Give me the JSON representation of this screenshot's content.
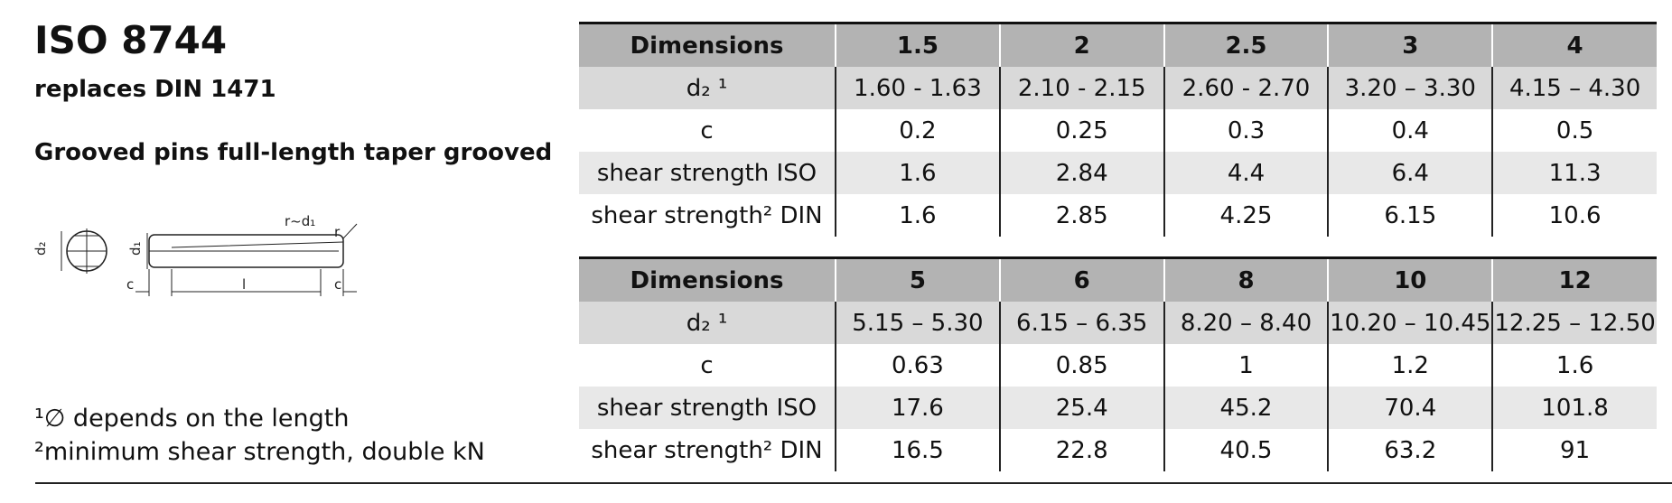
{
  "header": {
    "title": "ISO 8744",
    "subtitle": "replaces DIN 1471",
    "description": "Grooved pins full-length taper grooved"
  },
  "diagram": {
    "labels": [
      "r~d₁",
      "r",
      "d₂",
      "d₁",
      "c",
      "l",
      "c"
    ]
  },
  "footnotes": [
    "¹∅ depends on the length",
    "²minimum shear strength, double kN"
  ],
  "tables": [
    {
      "header": [
        "Dimensions",
        "1.5",
        "2",
        "2.5",
        "3",
        "4"
      ],
      "rows": [
        [
          "d₂ ¹",
          "1.60 - 1.63",
          "2.10 - 2.15",
          "2.60 - 2.70",
          "3.20 – 3.30",
          "4.15 – 4.30"
        ],
        [
          "c",
          "0.2",
          "0.25",
          "0.3",
          "0.4",
          "0.5"
        ],
        [
          "shear strength ISO",
          "1.6",
          "2.84",
          "4.4",
          "6.4",
          "11.3"
        ],
        [
          "shear strength² DIN",
          "1.6",
          "2.85",
          "4.25",
          "6.15",
          "10.6"
        ]
      ]
    },
    {
      "header": [
        "Dimensions",
        "5",
        "6",
        "8",
        "10",
        "12"
      ],
      "rows": [
        [
          "d₂ ¹",
          "5.15 – 5.30",
          "6.15 – 6.35",
          "8.20 – 8.40",
          "10.20 – 10.45",
          "12.25 – 12.50"
        ],
        [
          "c",
          "0.63",
          "0.85",
          "1",
          "1.2",
          "1.6"
        ],
        [
          "shear strength ISO",
          "17.6",
          "25.4",
          "45.2",
          "70.4",
          "101.8"
        ],
        [
          "shear strength² DIN",
          "16.5",
          "22.8",
          "40.5",
          "63.2",
          "91"
        ]
      ]
    }
  ]
}
